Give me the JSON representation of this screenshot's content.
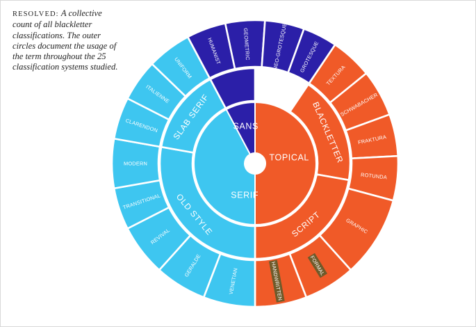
{
  "caption": {
    "lead": "RESOLVED:",
    "body": "A collective count of all blackletter classifications. The outer circles document the usage of the term throughout the 25 classification systems studied."
  },
  "colors": {
    "topical": "#f05a28",
    "sans": "#2b1fa8",
    "serif": "#3ec6f0",
    "stroke": "#ffffff",
    "highlight": "#6f5a2a"
  },
  "wheel": {
    "hub": [
      {
        "id": "topical",
        "label": "TOPICAL",
        "color": "topical",
        "start": -90,
        "end": 90
      },
      {
        "id": "serif",
        "label": "SERIF",
        "color": "serif",
        "start": 90,
        "end": 242
      },
      {
        "id": "sans",
        "label": "SANS",
        "color": "sans",
        "start": 242,
        "end": 270
      }
    ],
    "middle": [
      {
        "id": "blackletter",
        "label": "BLACKLETTER",
        "color": "topical",
        "start": -56,
        "end": 10
      },
      {
        "id": "script",
        "label": "SCRIPT",
        "color": "topical",
        "start": 10,
        "end": 90
      },
      {
        "id": "old-style",
        "label": "OLD STYLE",
        "color": "serif",
        "start": 90,
        "end": 190
      },
      {
        "id": "slab-serif",
        "label": "SLAB SERIF",
        "color": "serif",
        "start": 190,
        "end": 242
      },
      {
        "id": "sans-ring",
        "label": "",
        "color": "sans",
        "start": 242,
        "end": 270
      }
    ],
    "outer": [
      {
        "id": "textura",
        "label": "TEXTURA",
        "color": "topical",
        "start": -56,
        "end": -39
      },
      {
        "id": "schwabacher",
        "label": "SCHWABACHER",
        "color": "topical",
        "start": -39,
        "end": -20
      },
      {
        "id": "fraktura",
        "label": "FRAKTURA",
        "color": "topical",
        "start": -20,
        "end": -3
      },
      {
        "id": "rotunda",
        "label": "ROTUNDA",
        "color": "topical",
        "start": -3,
        "end": 15
      },
      {
        "id": "graphic",
        "label": "GRAPHIC",
        "color": "topical",
        "start": 15,
        "end": 48
      },
      {
        "id": "formal",
        "label": "FORMAL",
        "color": "topical",
        "start": 48,
        "end": 69,
        "highlight": true
      },
      {
        "id": "handwritten",
        "label": "HANDWRITTEN",
        "color": "topical",
        "start": 69,
        "end": 90,
        "highlight": true
      },
      {
        "id": "venetian",
        "label": "VENETIAN",
        "color": "serif",
        "start": 90,
        "end": 111
      },
      {
        "id": "geralde",
        "label": "GERALDE",
        "color": "serif",
        "start": 111,
        "end": 132
      },
      {
        "id": "revival",
        "label": "REVIVAL",
        "color": "serif",
        "start": 132,
        "end": 153
      },
      {
        "id": "transitional",
        "label": "TRANSITIONAL",
        "color": "serif",
        "start": 153,
        "end": 170
      },
      {
        "id": "modern",
        "label": "MODERN",
        "color": "serif",
        "start": 170,
        "end": 190
      },
      {
        "id": "clarendon",
        "label": "CLARENDON",
        "color": "serif",
        "start": 190,
        "end": 207
      },
      {
        "id": "italienne",
        "label": "ITALIENNE",
        "color": "serif",
        "start": 207,
        "end": 224
      },
      {
        "id": "uniform",
        "label": "UNIFORM",
        "color": "serif",
        "start": 224,
        "end": 242
      },
      {
        "id": "humanist",
        "label": "HUMANIST",
        "color": "sans",
        "start": 242,
        "end": 258
      },
      {
        "id": "geometric",
        "label": "GEOMETRIC",
        "color": "sans",
        "start": 258,
        "end": 274
      },
      {
        "id": "neo-grotesque",
        "label": "NEO-GROTESQUE",
        "color": "sans",
        "start": 274,
        "end": 290
      },
      {
        "id": "grotesque",
        "label": "GROTESQUE",
        "color": "sans",
        "start": 290,
        "end": 304
      }
    ]
  }
}
